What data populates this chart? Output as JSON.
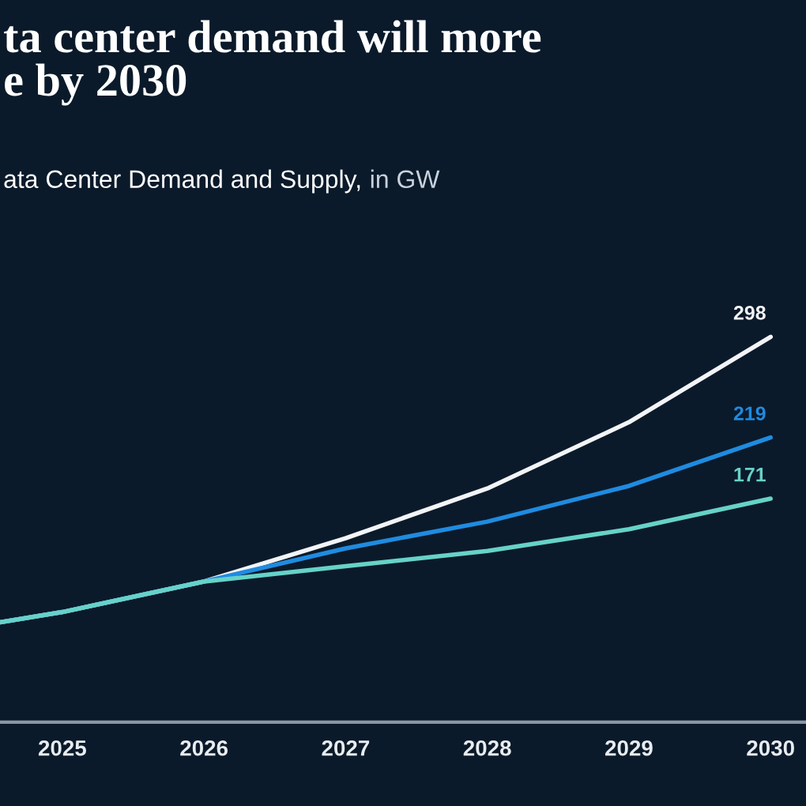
{
  "chart_data": {
    "type": "line",
    "title": "ta center demand will more\ne by 2030",
    "subtitle": "ata Center Demand and Supply, in GW",
    "x": [
      2024.56,
      2025,
      2026,
      2027,
      2028,
      2029,
      2030
    ],
    "xlim": [
      2024.56,
      2030.25
    ],
    "xticks": [
      2025,
      2026,
      2027,
      2028,
      2029,
      2030
    ],
    "tick_labels": "x",
    "grid": false,
    "legend": false,
    "marker": "none",
    "line_style": "solid",
    "series": [
      {
        "color": "#f2f4f7",
        "values": [
          74,
          82,
          106,
          140,
          179,
          231,
          298
        ],
        "value_labels": [
          null,
          null,
          null,
          null,
          null,
          null,
          "298"
        ]
      },
      {
        "color": "#1f8be0",
        "values": [
          74,
          82,
          106,
          132,
          153,
          181,
          219
        ],
        "value_labels": [
          null,
          null,
          null,
          null,
          null,
          null,
          "219"
        ]
      },
      {
        "color": "#66d2c8",
        "values": [
          74,
          82,
          106,
          118,
          130,
          147,
          171
        ],
        "value_labels": [
          null,
          null,
          null,
          null,
          null,
          null,
          "171"
        ]
      }
    ]
  }
}
